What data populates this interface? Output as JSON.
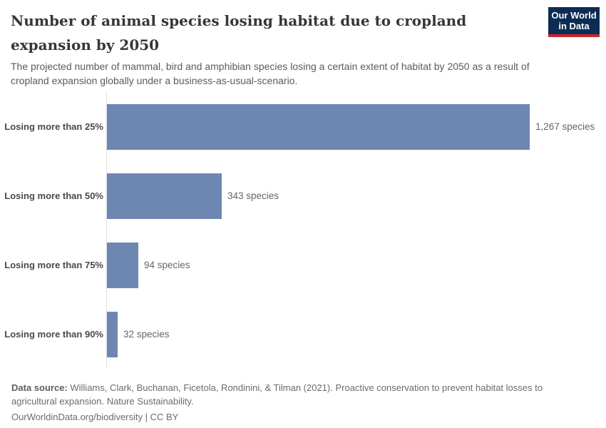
{
  "header": {
    "title": "Number of animal species losing habitat due to cropland expansion by 2050",
    "subtitle": "The projected number of mammal, bird and amphibian species losing a certain extent of habitat by 2050 as a result of cropland expansion globally under a business-as-usual-scenario.",
    "logo": {
      "line1": "Our World",
      "line2": "in Data"
    }
  },
  "chart_data": {
    "type": "bar",
    "orientation": "horizontal",
    "title": "Number of animal species losing habitat due to cropland expansion by 2050",
    "categories": [
      "Losing more than 25%",
      "Losing more than 50%",
      "Losing more than 75%",
      "Losing more than 90%"
    ],
    "values": [
      1267,
      343,
      94,
      32
    ],
    "value_labels": [
      "1,267 species",
      "343 species",
      "94 species",
      "32 species"
    ],
    "xlabel": "",
    "ylabel": "",
    "xlim": [
      0,
      1267
    ],
    "grid": false,
    "legend": false,
    "bar_color": "#6e87b2"
  },
  "footer": {
    "source_label": "Data source:",
    "source_text": "Williams, Clark, Buchanan, Ficetola, Rondinini, & Tilman (2021). Proactive conservation to prevent habitat losses to agricultural expansion. Nature Sustainability.",
    "link_line": "OurWorldinData.org/biodiversity | CC BY"
  },
  "colors": {
    "bar": "#6e87b2",
    "logo_background": "#0d2c54",
    "logo_stripe": "#c4262e",
    "axis_line": "#dedede"
  }
}
